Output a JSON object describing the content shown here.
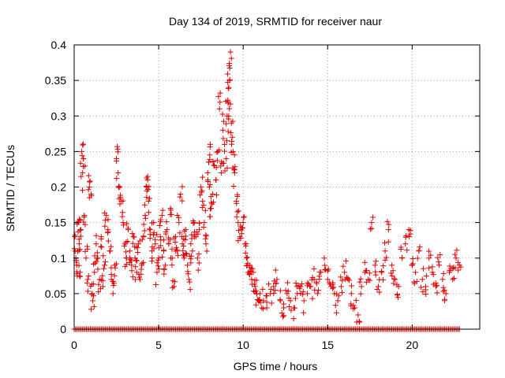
{
  "chart_data": {
    "type": "scatter",
    "title": "Day 134 of 2019, SRMTID for receiver naur",
    "xlabel": "GPS time / hours",
    "ylabel": "SRMTID / TECUs",
    "xlim": [
      0,
      24
    ],
    "ylim": [
      0,
      0.4
    ],
    "x_ticks": [
      0,
      5,
      10,
      15,
      20
    ],
    "x_tick_labels": [
      "0",
      "5",
      "10",
      "15",
      "20"
    ],
    "y_ticks": [
      0,
      0.05,
      0.1,
      0.15,
      0.2,
      0.25,
      0.3,
      0.35,
      0.4
    ],
    "y_tick_labels": [
      "0",
      "0.05",
      "0.1",
      "0.15",
      "0.2",
      "0.25",
      "0.3",
      "0.35",
      "0.4"
    ],
    "grid": true,
    "marker": "+",
    "color": "#e00000",
    "series": [
      {
        "name": "SRMTID",
        "points": [
          [
            0.05,
            0.13
          ],
          [
            0.1,
            0.1
          ],
          [
            0.15,
            0.09
          ],
          [
            0.2,
            0.11
          ],
          [
            0.25,
            0.15
          ],
          [
            0.3,
            0.12
          ],
          [
            0.35,
            0.08
          ],
          [
            0.4,
            0.14
          ],
          [
            0.45,
            0.25
          ],
          [
            0.5,
            0.22
          ],
          [
            0.55,
            0.24
          ],
          [
            0.6,
            0.16
          ],
          [
            0.7,
            0.1
          ],
          [
            0.8,
            0.07
          ],
          [
            0.9,
            0.2
          ],
          [
            1.0,
            0.19
          ],
          [
            1.05,
            0.05
          ],
          [
            1.1,
            0.04
          ],
          [
            1.2,
            0.08
          ],
          [
            1.3,
            0.12
          ],
          [
            1.4,
            0.1
          ],
          [
            1.5,
            0.07
          ],
          [
            1.6,
            0.13
          ],
          [
            1.7,
            0.06
          ],
          [
            1.8,
            0.09
          ],
          [
            1.9,
            0.16
          ],
          [
            2.0,
            0.14
          ],
          [
            2.1,
            0.11
          ],
          [
            2.2,
            0.07
          ],
          [
            2.3,
            0.05
          ],
          [
            2.4,
            0.09
          ],
          [
            2.5,
            0.24
          ],
          [
            2.6,
            0.22
          ],
          [
            2.7,
            0.2
          ],
          [
            2.8,
            0.18
          ],
          [
            2.9,
            0.15
          ],
          [
            3.0,
            0.12
          ],
          [
            3.1,
            0.1
          ],
          [
            3.2,
            0.14
          ],
          [
            3.3,
            0.11
          ],
          [
            3.4,
            0.09
          ],
          [
            3.5,
            0.13
          ],
          [
            3.6,
            0.1
          ],
          [
            3.7,
            0.08
          ],
          [
            3.8,
            0.12
          ],
          [
            3.9,
            0.07
          ],
          [
            4.0,
            0.09
          ],
          [
            4.1,
            0.13
          ],
          [
            4.2,
            0.16
          ],
          [
            4.3,
            0.2
          ],
          [
            4.35,
            0.21
          ],
          [
            4.4,
            0.18
          ],
          [
            4.5,
            0.14
          ],
          [
            4.6,
            0.11
          ],
          [
            4.7,
            0.15
          ],
          [
            4.8,
            0.12
          ],
          [
            4.9,
            0.08
          ],
          [
            5.0,
            0.1
          ],
          [
            5.1,
            0.13
          ],
          [
            5.2,
            0.16
          ],
          [
            5.3,
            0.11
          ],
          [
            5.4,
            0.09
          ],
          [
            5.5,
            0.14
          ],
          [
            5.6,
            0.12
          ],
          [
            5.7,
            0.17
          ],
          [
            5.8,
            0.1
          ],
          [
            5.9,
            0.06
          ],
          [
            6.0,
            0.13
          ],
          [
            6.1,
            0.11
          ],
          [
            6.2,
            0.15
          ],
          [
            6.3,
            0.19
          ],
          [
            6.4,
            0.12
          ],
          [
            6.5,
            0.1
          ],
          [
            6.6,
            0.14
          ],
          [
            6.7,
            0.09
          ],
          [
            6.8,
            0.07
          ],
          [
            6.9,
            0.12
          ],
          [
            7.0,
            0.11
          ],
          [
            7.1,
            0.15
          ],
          [
            7.2,
            0.13
          ],
          [
            7.3,
            0.1
          ],
          [
            7.4,
            0.14
          ],
          [
            7.5,
            0.2
          ],
          [
            7.6,
            0.18
          ],
          [
            7.7,
            0.15
          ],
          [
            7.8,
            0.12
          ],
          [
            7.9,
            0.22
          ],
          [
            8.0,
            0.2
          ],
          [
            8.05,
            0.26
          ],
          [
            8.1,
            0.17
          ],
          [
            8.2,
            0.19
          ],
          [
            8.3,
            0.23
          ],
          [
            8.4,
            0.21
          ],
          [
            8.5,
            0.25
          ],
          [
            8.6,
            0.31
          ],
          [
            8.7,
            0.22
          ],
          [
            8.8,
            0.28
          ],
          [
            8.9,
            0.26
          ],
          [
            9.0,
            0.24
          ],
          [
            9.05,
            0.3
          ],
          [
            9.1,
            0.32
          ],
          [
            9.15,
            0.34
          ],
          [
            9.2,
            0.35
          ],
          [
            9.25,
            0.39
          ],
          [
            9.3,
            0.29
          ],
          [
            9.35,
            0.27
          ],
          [
            9.4,
            0.25
          ],
          [
            9.5,
            0.22
          ],
          [
            9.6,
            0.18
          ],
          [
            9.7,
            0.15
          ],
          [
            9.8,
            0.13
          ],
          [
            9.9,
            0.14
          ],
          [
            10.0,
            0.15
          ],
          [
            10.1,
            0.12
          ],
          [
            10.2,
            0.1
          ],
          [
            10.3,
            0.08
          ],
          [
            10.4,
            0.09
          ],
          [
            10.5,
            0.07
          ],
          [
            10.6,
            0.08
          ],
          [
            10.7,
            0.06
          ],
          [
            10.8,
            0.05
          ],
          [
            10.9,
            0.04
          ],
          [
            11.0,
            0.05
          ],
          [
            11.2,
            0.04
          ],
          [
            11.4,
            0.03
          ],
          [
            11.6,
            0.05
          ],
          [
            11.8,
            0.06
          ],
          [
            12.0,
            0.07
          ],
          [
            12.2,
            0.04
          ],
          [
            12.4,
            0.03
          ],
          [
            12.6,
            0.05
          ],
          [
            12.8,
            0.04
          ],
          [
            13.0,
            0.03
          ],
          [
            13.2,
            0.05
          ],
          [
            13.4,
            0.06
          ],
          [
            13.6,
            0.04
          ],
          [
            13.8,
            0.05
          ],
          [
            14.0,
            0.06
          ],
          [
            14.2,
            0.07
          ],
          [
            14.4,
            0.05
          ],
          [
            14.6,
            0.08
          ],
          [
            14.8,
            0.1
          ],
          [
            15.0,
            0.07
          ],
          [
            15.2,
            0.06
          ],
          [
            15.4,
            0.05
          ],
          [
            15.6,
            0.04
          ],
          [
            15.8,
            0.06
          ],
          [
            16.0,
            0.08
          ],
          [
            16.2,
            0.07
          ],
          [
            16.4,
            0.05
          ],
          [
            16.6,
            0.03
          ],
          [
            16.8,
            0.02
          ],
          [
            17.0,
            0.06
          ],
          [
            17.2,
            0.08
          ],
          [
            17.4,
            0.07
          ],
          [
            17.6,
            0.15
          ],
          [
            17.8,
            0.09
          ],
          [
            18.0,
            0.06
          ],
          [
            18.2,
            0.08
          ],
          [
            18.4,
            0.11
          ],
          [
            18.6,
            0.14
          ],
          [
            18.8,
            0.09
          ],
          [
            19.0,
            0.07
          ],
          [
            19.2,
            0.06
          ],
          [
            19.4,
            0.1
          ],
          [
            19.6,
            0.12
          ],
          [
            19.8,
            0.14
          ],
          [
            20.0,
            0.09
          ],
          [
            20.2,
            0.08
          ],
          [
            20.4,
            0.11
          ],
          [
            20.6,
            0.07
          ],
          [
            20.8,
            0.06
          ],
          [
            21.0,
            0.1
          ],
          [
            21.2,
            0.08
          ],
          [
            21.4,
            0.06
          ],
          [
            21.6,
            0.09
          ],
          [
            21.8,
            0.07
          ],
          [
            22.0,
            0.05
          ],
          [
            22.2,
            0.08
          ],
          [
            22.4,
            0.07
          ],
          [
            22.6,
            0.1
          ],
          [
            22.8,
            0.09
          ]
        ]
      }
    ],
    "zero_band": {
      "from": 0.0,
      "to": 22.8
    }
  }
}
